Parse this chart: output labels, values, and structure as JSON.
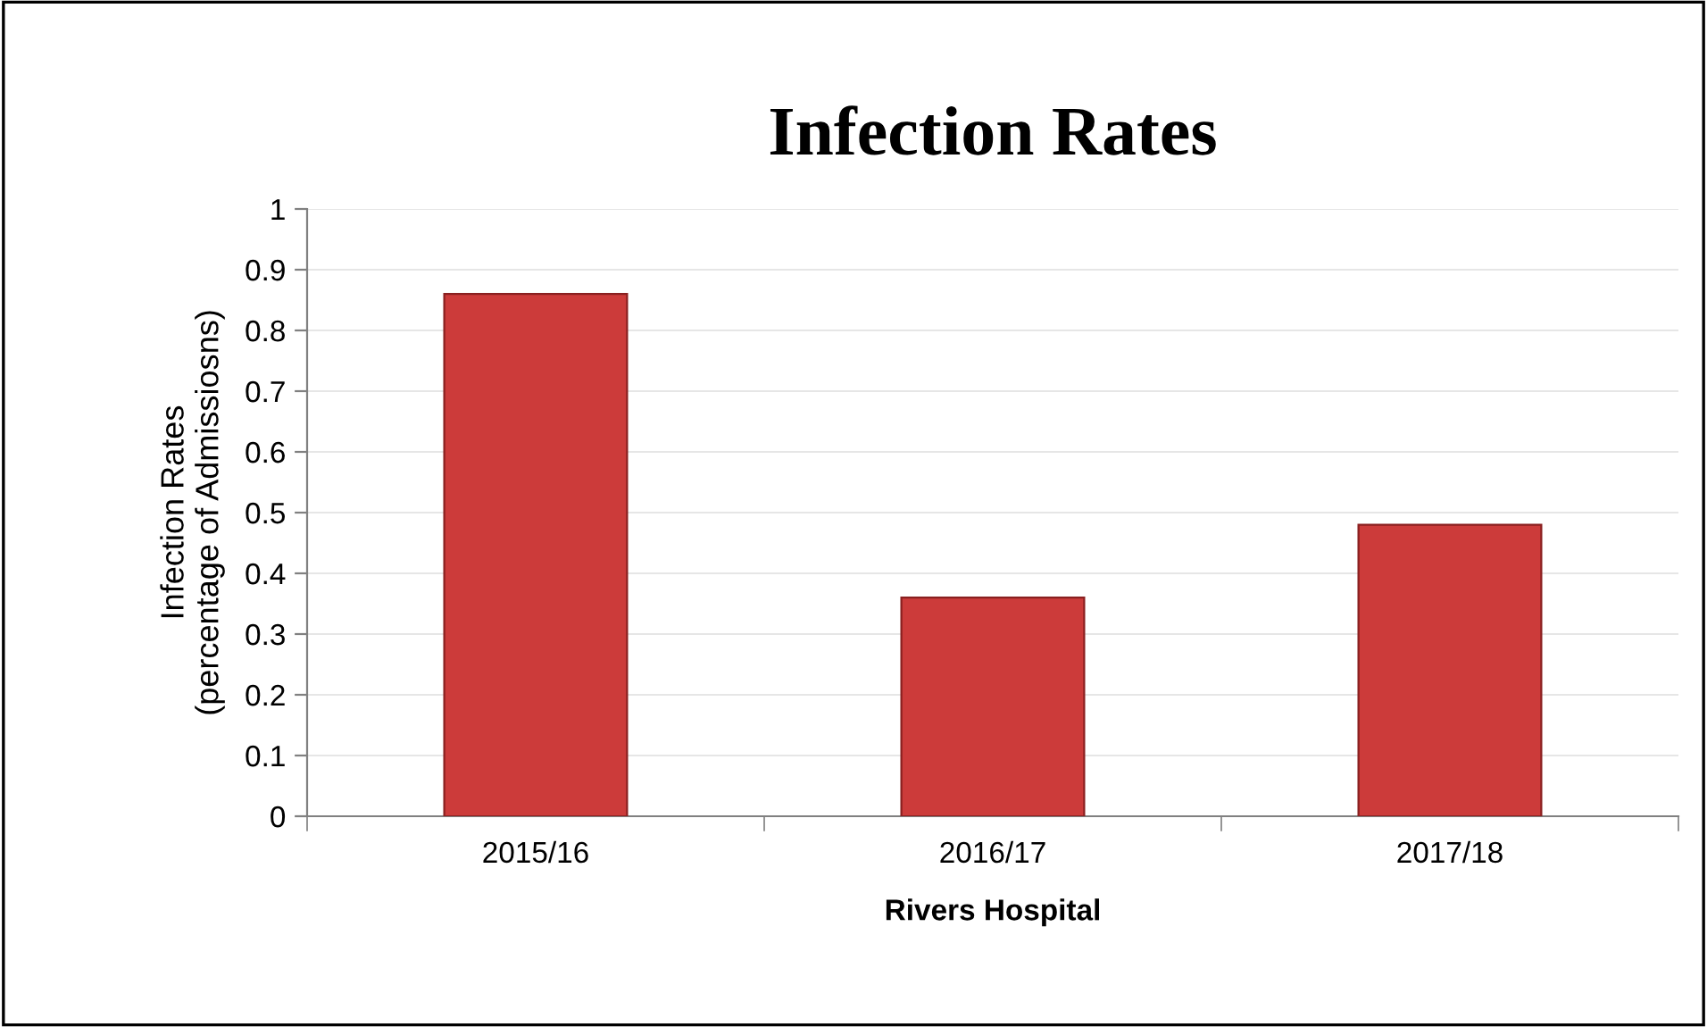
{
  "chart_data": {
    "type": "bar",
    "title": "Infection Rates",
    "xlabel": "Rivers Hospital",
    "ylabel": "Infection Rates\n(percentage of Admissiosns)",
    "categories": [
      "2015/16",
      "2016/17",
      "2017/18"
    ],
    "values": [
      0.86,
      0.36,
      0.48
    ],
    "color": "#cc3b3a",
    "ylim": [
      0,
      1
    ],
    "yticks": [
      0,
      0.1,
      0.2,
      0.3,
      0.4,
      0.5,
      0.6,
      0.7,
      0.8,
      0.9,
      1
    ],
    "grid": "y",
    "legend": false
  }
}
